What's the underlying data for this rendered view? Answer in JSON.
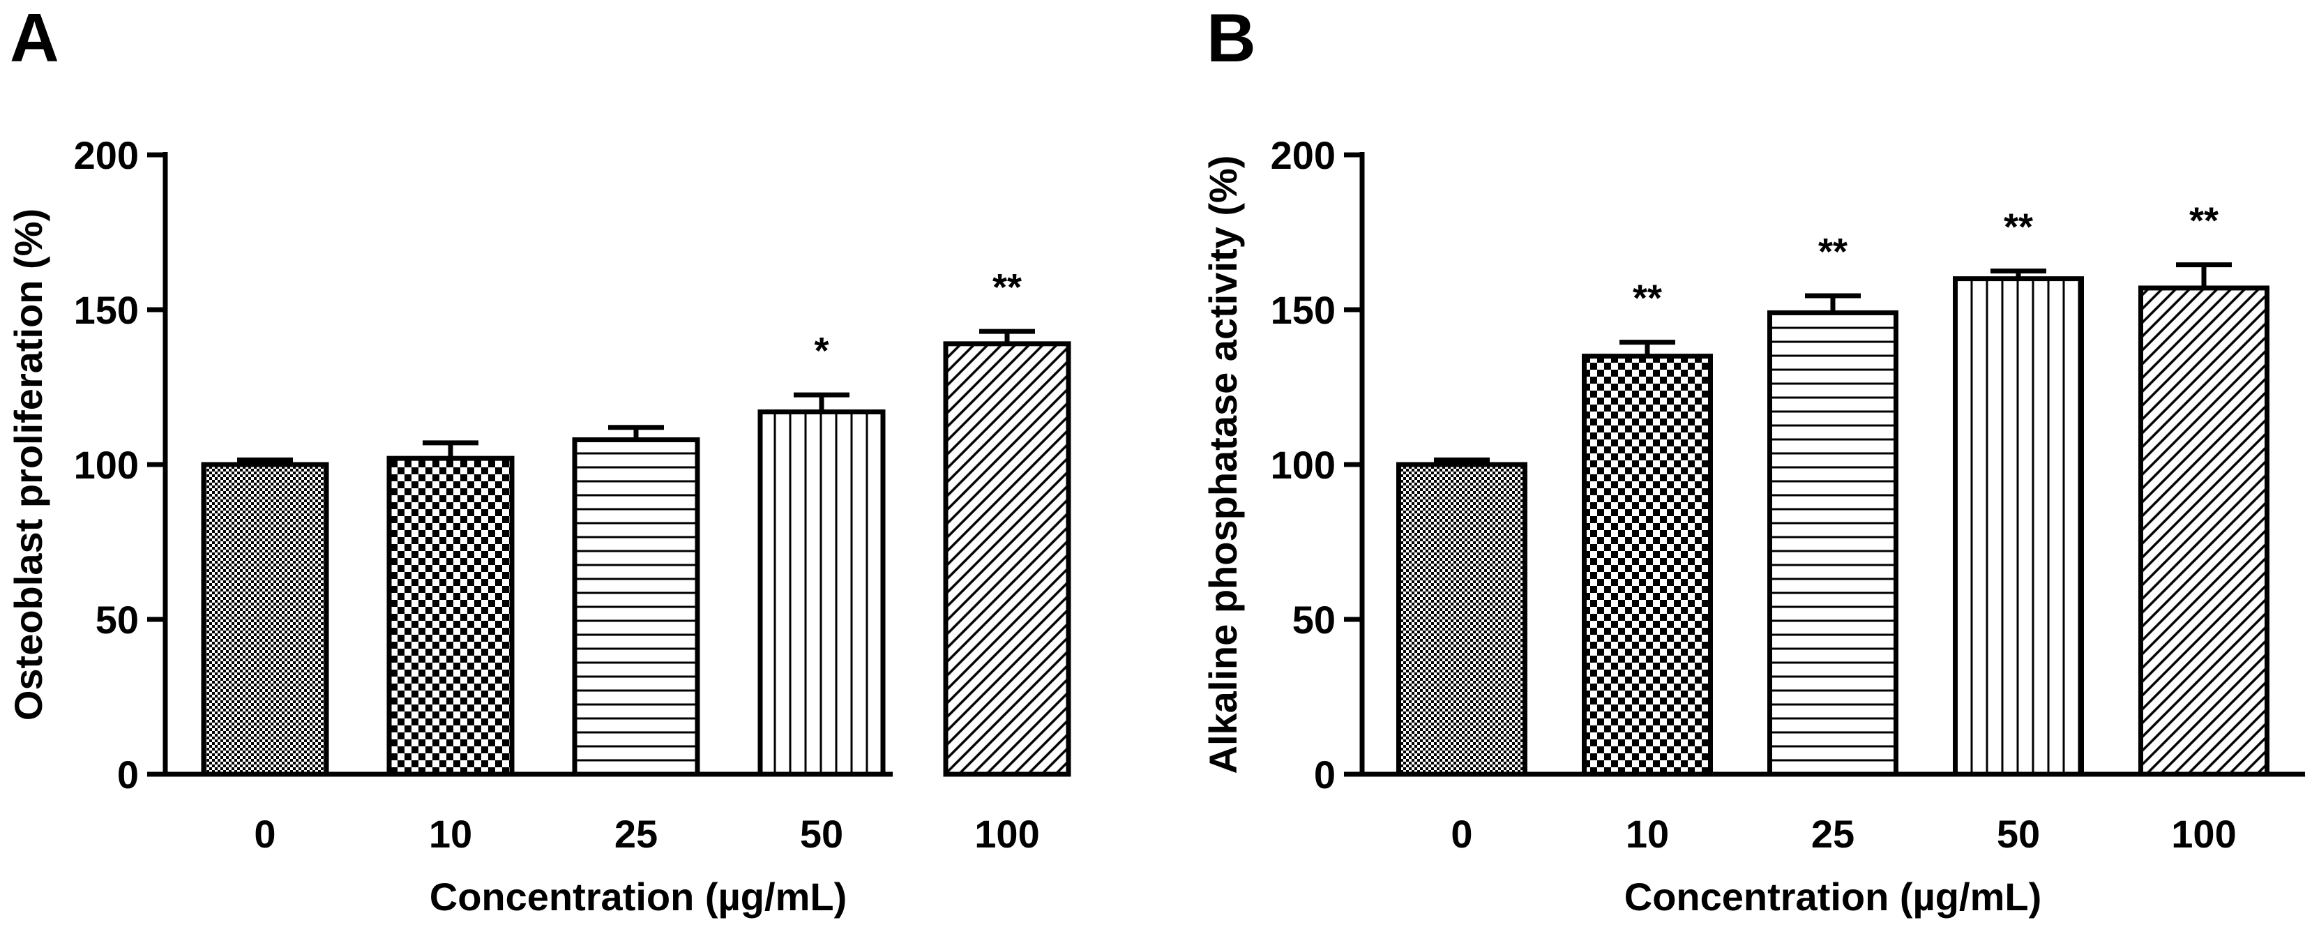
{
  "chart_data": [
    {
      "type": "bar",
      "panel_label": "A",
      "title": "",
      "xlabel": "Concentration (µg/mL)",
      "ylabel": "Osteoblast proliferation (%)",
      "categories": [
        "0",
        "10",
        "25",
        "50",
        "100"
      ],
      "values": [
        100,
        102,
        108,
        117,
        139
      ],
      "errors": [
        1.5,
        5,
        4,
        5.5,
        4
      ],
      "significance": [
        "",
        "",
        "",
        "*",
        "**"
      ],
      "ylim": [
        0,
        200
      ],
      "yticks": [
        "0",
        "50",
        "100",
        "150",
        "200"
      ],
      "fill_patterns": [
        "fine-check",
        "coarse-check",
        "horizontal-lines",
        "vertical-lines",
        "diagonal-lines"
      ],
      "grid": false
    },
    {
      "type": "bar",
      "panel_label": "B",
      "title": "",
      "xlabel": "Concentration (µg/mL)",
      "ylabel": "Alkaline phosphatase activity (%)",
      "categories": [
        "0",
        "10",
        "25",
        "50",
        "100"
      ],
      "values": [
        100,
        135,
        149,
        160,
        157
      ],
      "errors": [
        1.5,
        4.5,
        5.5,
        2.5,
        7.5
      ],
      "significance": [
        "",
        "**",
        "**",
        "**",
        "**"
      ],
      "ylim": [
        0,
        200
      ],
      "yticks": [
        "0",
        "50",
        "100",
        "150",
        "200"
      ],
      "fill_patterns": [
        "fine-check",
        "coarse-check",
        "horizontal-lines",
        "vertical-lines",
        "diagonal-lines"
      ],
      "grid": false
    }
  ],
  "colors": {
    "ink": "#000000",
    "background": "#ffffff"
  }
}
